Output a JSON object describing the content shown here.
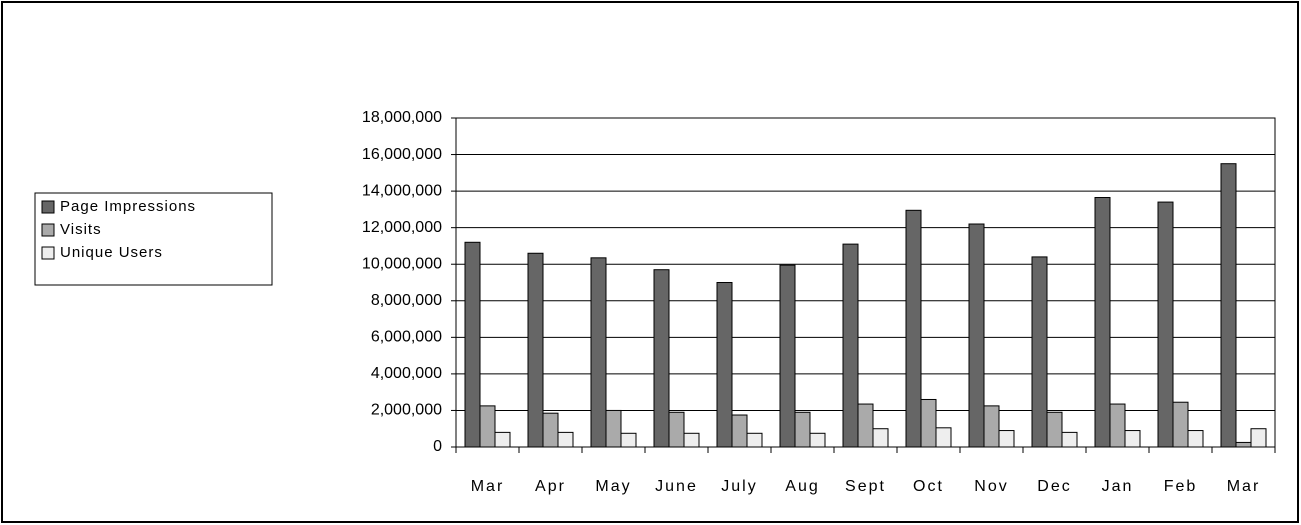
{
  "chart_data": {
    "type": "bar",
    "categories": [
      "Mar",
      "Apr",
      "May",
      "June",
      "July",
      "Aug",
      "Sept",
      "Oct",
      "Nov",
      "Dec",
      "Jan",
      "Feb",
      "Mar"
    ],
    "series": [
      {
        "name": "Page Impressions",
        "color": "#666666",
        "values": [
          11200000,
          10600000,
          10350000,
          9700000,
          9000000,
          9950000,
          11100000,
          12950000,
          12200000,
          10400000,
          13650000,
          13400000,
          15500000
        ]
      },
      {
        "name": "Visits",
        "color": "#aaaaaa",
        "values": [
          2250000,
          1850000,
          2000000,
          1900000,
          1750000,
          1900000,
          2350000,
          2600000,
          2250000,
          1900000,
          2350000,
          2450000,
          250000
        ]
      },
      {
        "name": "Unique Users",
        "color": "#eeeeee",
        "values": [
          800000,
          800000,
          750000,
          750000,
          750000,
          750000,
          1000000,
          1050000,
          900000,
          800000,
          900000,
          900000,
          1000000
        ]
      }
    ],
    "ylim": [
      0,
      18000000
    ],
    "yticks": [
      0,
      {
        "value": 2000000,
        "label": "2,000,000"
      },
      {
        "value": 4000000,
        "label": "4,000,000"
      },
      {
        "value": 6000000,
        "label": "6,000,000"
      },
      {
        "value": 8000000,
        "label": "8,000,000"
      },
      {
        "value": 10000000,
        "label": "10,000,000"
      },
      {
        "value": 12000000,
        "label": "12,000,000"
      },
      {
        "value": 14000000,
        "label": "14,000,000"
      },
      {
        "value": 16000000,
        "label": "16,000,000"
      },
      {
        "value": 18000000,
        "label": "18,000,000"
      }
    ],
    "grid": true,
    "legend": "left"
  }
}
